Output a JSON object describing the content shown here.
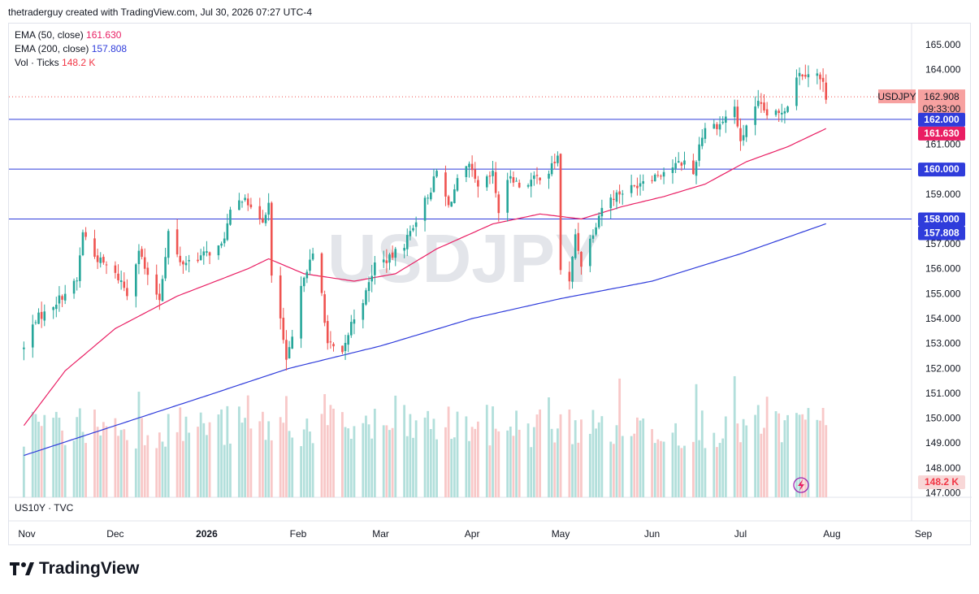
{
  "header": {
    "text": "thetraderguy created with TradingView.com, Jul 30, 2026 07:27 UTC-4"
  },
  "legend": {
    "ema50_label": "EMA (50, close)",
    "ema50_value": "161.630",
    "ema200_label": "EMA (200, close)",
    "ema200_value": "157.808",
    "vol_label": "Vol · Ticks",
    "vol_value": "148.2 K"
  },
  "watermark": "USDJPY",
  "sub_pane_label": "US10Y · TVC",
  "brand": "TradingView",
  "colors": {
    "up": "#26a69a",
    "down": "#ef5350",
    "ema50": "#e91e63",
    "ema200": "#2f3cdb",
    "hline": "#2f3cdb",
    "vol_up": "#b2dfdb",
    "vol_down": "#f8c8c8"
  },
  "chart_data": {
    "type": "candlestick",
    "symbol": "USDJPY",
    "last_price": "162.908",
    "countdown": "09:33:00",
    "ylim": [
      147.0,
      165.5
    ],
    "y_ticks": [
      "147.000",
      "148.000",
      "149.000",
      "150.000",
      "151.000",
      "152.000",
      "153.000",
      "154.000",
      "155.000",
      "156.000",
      "157.000",
      "158.000",
      "159.000",
      "160.000",
      "161.000",
      "162.000",
      "163.000",
      "164.000",
      "165.000"
    ],
    "x_labels": [
      "Nov",
      "Dec",
      "2026",
      "Feb",
      "Mar",
      "Apr",
      "May",
      "Jun",
      "Jul",
      "Aug",
      "Sep"
    ],
    "horizontal_lines": [
      162.0,
      160.0,
      158.0
    ],
    "price_badges": [
      {
        "label": "162.000",
        "color": "#2f3cdb"
      },
      {
        "label": "161.630",
        "color": "#e91e63"
      },
      {
        "label": "160.000",
        "color": "#2f3cdb"
      },
      {
        "label": "158.000",
        "color": "#2f3cdb"
      },
      {
        "label": "157.808",
        "color": "#2f3cdb"
      },
      {
        "label": "148.2 K",
        "color": "#f23645"
      }
    ],
    "close_anchors": [
      [
        "2025-10-31",
        152.8
      ],
      [
        "2025-11-04",
        154.0
      ],
      [
        "2025-11-07",
        154.2
      ],
      [
        "2025-11-12",
        154.8
      ],
      [
        "2025-11-18",
        155.5
      ],
      [
        "2025-11-20",
        157.5
      ],
      [
        "2025-11-24",
        156.5
      ],
      [
        "2025-11-28",
        156.1
      ],
      [
        "2025-12-03",
        155.5
      ],
      [
        "2025-12-05",
        155.0
      ],
      [
        "2025-12-09",
        156.8
      ],
      [
        "2025-12-12",
        155.6
      ],
      [
        "2025-12-16",
        154.8
      ],
      [
        "2025-12-19",
        157.5
      ],
      [
        "2025-12-23",
        156.2
      ],
      [
        "2025-12-30",
        156.5
      ],
      [
        "2026-01-06",
        156.9
      ],
      [
        "2026-01-09",
        158.2
      ],
      [
        "2026-01-14",
        159.0
      ],
      [
        "2026-01-16",
        158.3
      ],
      [
        "2026-01-20",
        158.0
      ],
      [
        "2026-01-22",
        158.6
      ],
      [
        "2026-01-23",
        155.6
      ],
      [
        "2026-01-26",
        154.0
      ],
      [
        "2026-01-28",
        152.2
      ],
      [
        "2026-01-30",
        153.2
      ],
      [
        "2026-02-03",
        155.8
      ],
      [
        "2026-02-06",
        156.5
      ],
      [
        "2026-02-09",
        155.0
      ],
      [
        "2026-02-11",
        153.0
      ],
      [
        "2026-02-13",
        152.8
      ],
      [
        "2026-02-16",
        152.5
      ],
      [
        "2026-02-19",
        153.8
      ],
      [
        "2026-02-24",
        155.0
      ],
      [
        "2026-02-27",
        156.2
      ],
      [
        "2026-03-04",
        156.4
      ],
      [
        "2026-03-09",
        157.0
      ],
      [
        "2026-03-13",
        158.0
      ],
      [
        "2026-03-18",
        159.2
      ],
      [
        "2026-03-20",
        159.9
      ],
      [
        "2026-03-24",
        158.5
      ],
      [
        "2026-03-27",
        159.5
      ],
      [
        "2026-03-31",
        160.1
      ],
      [
        "2026-04-03",
        159.2
      ],
      [
        "2026-04-08",
        159.8
      ],
      [
        "2026-04-10",
        158.3
      ],
      [
        "2026-04-14",
        159.8
      ],
      [
        "2026-04-17",
        159.3
      ],
      [
        "2026-04-22",
        159.6
      ],
      [
        "2026-04-27",
        159.9
      ],
      [
        "2026-04-30",
        160.5
      ],
      [
        "2026-05-01",
        156.0
      ],
      [
        "2026-05-04",
        155.4
      ],
      [
        "2026-05-06",
        157.4
      ],
      [
        "2026-05-08",
        156.2
      ],
      [
        "2026-05-12",
        157.5
      ],
      [
        "2026-05-15",
        158.5
      ],
      [
        "2026-05-20",
        159.0
      ],
      [
        "2026-05-26",
        159.3
      ],
      [
        "2026-05-29",
        159.6
      ],
      [
        "2026-06-03",
        159.8
      ],
      [
        "2026-06-08",
        160.1
      ],
      [
        "2026-06-12",
        160.3
      ],
      [
        "2026-06-15",
        159.8
      ],
      [
        "2026-06-17",
        161.0
      ],
      [
        "2026-06-19",
        161.7
      ],
      [
        "2026-06-24",
        161.8
      ],
      [
        "2026-06-29",
        162.5
      ],
      [
        "2026-07-01",
        161.0
      ],
      [
        "2026-07-03",
        161.8
      ],
      [
        "2026-07-07",
        162.6
      ],
      [
        "2026-07-10",
        162.2
      ],
      [
        "2026-07-14",
        162.2
      ],
      [
        "2026-07-17",
        162.6
      ],
      [
        "2026-07-20",
        163.8
      ],
      [
        "2026-07-24",
        163.9
      ],
      [
        "2026-07-27",
        163.8
      ],
      [
        "2026-07-29",
        163.4
      ],
      [
        "2026-07-30",
        162.908
      ]
    ],
    "ema50_anchors": [
      [
        "2025-10-31",
        149.7
      ],
      [
        "2025-11-14",
        151.9
      ],
      [
        "2025-12-01",
        153.6
      ],
      [
        "2025-12-22",
        154.9
      ],
      [
        "2026-01-15",
        156.0
      ],
      [
        "2026-01-22",
        156.4
      ],
      [
        "2026-02-03",
        155.8
      ],
      [
        "2026-02-20",
        155.5
      ],
      [
        "2026-03-06",
        155.8
      ],
      [
        "2026-03-20",
        156.8
      ],
      [
        "2026-04-08",
        157.8
      ],
      [
        "2026-04-24",
        158.2
      ],
      [
        "2026-05-08",
        158.0
      ],
      [
        "2026-05-22",
        158.5
      ],
      [
        "2026-06-05",
        158.9
      ],
      [
        "2026-06-19",
        159.4
      ],
      [
        "2026-07-03",
        160.3
      ],
      [
        "2026-07-17",
        160.9
      ],
      [
        "2026-07-30",
        161.63
      ]
    ],
    "ema200_anchors": [
      [
        "2025-10-31",
        148.5
      ],
      [
        "2025-12-01",
        149.7
      ],
      [
        "2026-01-01",
        150.9
      ],
      [
        "2026-01-29",
        152.0
      ],
      [
        "2026-03-01",
        152.9
      ],
      [
        "2026-04-01",
        154.0
      ],
      [
        "2026-05-01",
        154.8
      ],
      [
        "2026-06-01",
        155.5
      ],
      [
        "2026-07-01",
        156.6
      ],
      [
        "2026-07-30",
        157.808
      ]
    ],
    "volume_range": [
      60,
      150
    ]
  }
}
